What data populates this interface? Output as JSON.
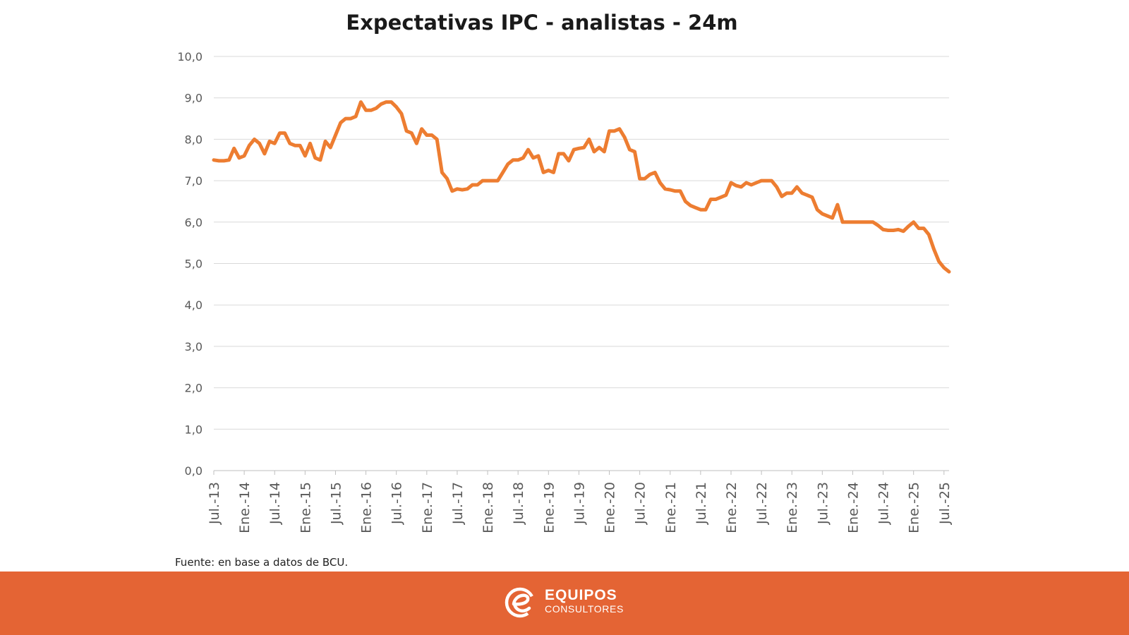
{
  "chart_data": {
    "type": "line",
    "title": "Expectativas IPC - analistas - 24m",
    "xlabel": "",
    "ylabel": "",
    "ylim": [
      0,
      10
    ],
    "y_ticks": [
      "0,0",
      "1,0",
      "2,0",
      "3,0",
      "4,0",
      "5,0",
      "6,0",
      "7,0",
      "8,0",
      "9,0",
      "10,0"
    ],
    "x_tick_labels": [
      "Jul.-13",
      "Ene.-14",
      "Jul.-14",
      "Ene.-15",
      "Jul.-15",
      "Ene.-16",
      "Jul.-16",
      "Ene.-17",
      "Jul.-17",
      "Ene.-18",
      "Jul.-18",
      "Ene.-19",
      "Jul.-19",
      "Ene.-20",
      "Jul.-20",
      "Ene.-21",
      "Jul.-21",
      "Ene.-22",
      "Jul.-22",
      "Ene.-23",
      "Jul.-23",
      "Ene.-24",
      "Jul.-24",
      "Ene.-25",
      "Jul.-25"
    ],
    "x_range_months": [
      0,
      145
    ],
    "grid": true,
    "legend": "none",
    "color": "#ed7d31",
    "series": [
      {
        "name": "Expectativas IPC - analistas - 24m",
        "points": [
          [
            0,
            7.5
          ],
          [
            1,
            7.48
          ],
          [
            2,
            7.48
          ],
          [
            3,
            7.5
          ],
          [
            4,
            7.78
          ],
          [
            5,
            7.55
          ],
          [
            6,
            7.6
          ],
          [
            7,
            7.85
          ],
          [
            8,
            8.0
          ],
          [
            9,
            7.9
          ],
          [
            10,
            7.65
          ],
          [
            11,
            7.95
          ],
          [
            12,
            7.9
          ],
          [
            13,
            8.15
          ],
          [
            14,
            8.15
          ],
          [
            15,
            7.9
          ],
          [
            16,
            7.85
          ],
          [
            17,
            7.85
          ],
          [
            18,
            7.6
          ],
          [
            19,
            7.9
          ],
          [
            20,
            7.55
          ],
          [
            21,
            7.5
          ],
          [
            22,
            7.95
          ],
          [
            23,
            7.8
          ],
          [
            24,
            8.1
          ],
          [
            25,
            8.4
          ],
          [
            26,
            8.5
          ],
          [
            27,
            8.5
          ],
          [
            28,
            8.55
          ],
          [
            29,
            8.9
          ],
          [
            30,
            8.7
          ],
          [
            31,
            8.7
          ],
          [
            32,
            8.75
          ],
          [
            33,
            8.85
          ],
          [
            34,
            8.9
          ],
          [
            35,
            8.9
          ],
          [
            36,
            8.78
          ],
          [
            37,
            8.62
          ],
          [
            38,
            8.2
          ],
          [
            39,
            8.15
          ],
          [
            40,
            7.9
          ],
          [
            41,
            8.25
          ],
          [
            42,
            8.1
          ],
          [
            43,
            8.1
          ],
          [
            44,
            8.0
          ],
          [
            45,
            7.2
          ],
          [
            46,
            7.05
          ],
          [
            47,
            6.75
          ],
          [
            48,
            6.8
          ],
          [
            49,
            6.78
          ],
          [
            50,
            6.8
          ],
          [
            51,
            6.9
          ],
          [
            52,
            6.9
          ],
          [
            53,
            7.0
          ],
          [
            54,
            7.0
          ],
          [
            55,
            7.0
          ],
          [
            56,
            7.0
          ],
          [
            57,
            7.2
          ],
          [
            58,
            7.4
          ],
          [
            59,
            7.5
          ],
          [
            60,
            7.5
          ],
          [
            61,
            7.55
          ],
          [
            62,
            7.75
          ],
          [
            63,
            7.55
          ],
          [
            64,
            7.6
          ],
          [
            65,
            7.2
          ],
          [
            66,
            7.25
          ],
          [
            67,
            7.2
          ],
          [
            68,
            7.65
          ],
          [
            69,
            7.65
          ],
          [
            70,
            7.48
          ],
          [
            71,
            7.75
          ],
          [
            72,
            7.78
          ],
          [
            73,
            7.8
          ],
          [
            74,
            8.0
          ],
          [
            75,
            7.7
          ],
          [
            76,
            7.8
          ],
          [
            77,
            7.7
          ],
          [
            78,
            8.2
          ],
          [
            79,
            8.2
          ],
          [
            80,
            8.25
          ],
          [
            81,
            8.05
          ],
          [
            82,
            7.75
          ],
          [
            83,
            7.7
          ],
          [
            84,
            7.05
          ],
          [
            85,
            7.05
          ],
          [
            86,
            7.15
          ],
          [
            87,
            7.2
          ],
          [
            88,
            6.95
          ],
          [
            89,
            6.8
          ],
          [
            90,
            6.78
          ],
          [
            91,
            6.75
          ],
          [
            92,
            6.75
          ],
          [
            93,
            6.5
          ],
          [
            94,
            6.4
          ],
          [
            95,
            6.35
          ],
          [
            96,
            6.3
          ],
          [
            97,
            6.3
          ],
          [
            98,
            6.55
          ],
          [
            99,
            6.55
          ],
          [
            100,
            6.6
          ],
          [
            101,
            6.65
          ],
          [
            102,
            6.95
          ],
          [
            103,
            6.88
          ],
          [
            104,
            6.85
          ],
          [
            105,
            6.95
          ],
          [
            106,
            6.9
          ],
          [
            107,
            6.95
          ],
          [
            108,
            7.0
          ],
          [
            109,
            7.0
          ],
          [
            110,
            7.0
          ],
          [
            111,
            6.85
          ],
          [
            112,
            6.62
          ],
          [
            113,
            6.7
          ],
          [
            114,
            6.7
          ],
          [
            115,
            6.85
          ],
          [
            116,
            6.7
          ],
          [
            117,
            6.65
          ],
          [
            118,
            6.6
          ],
          [
            119,
            6.3
          ],
          [
            120,
            6.2
          ],
          [
            121,
            6.15
          ],
          [
            122,
            6.1
          ],
          [
            123,
            6.42
          ],
          [
            124,
            6.0
          ],
          [
            125,
            6.0
          ],
          [
            126,
            6.0
          ],
          [
            127,
            6.0
          ],
          [
            128,
            6.0
          ],
          [
            129,
            6.0
          ],
          [
            130,
            6.0
          ],
          [
            131,
            5.92
          ],
          [
            132,
            5.82
          ],
          [
            133,
            5.8
          ],
          [
            134,
            5.8
          ],
          [
            135,
            5.82
          ],
          [
            136,
            5.78
          ],
          [
            137,
            5.9
          ],
          [
            138,
            6.0
          ],
          [
            139,
            5.85
          ],
          [
            140,
            5.85
          ],
          [
            141,
            5.7
          ],
          [
            142,
            5.35
          ],
          [
            143,
            5.05
          ],
          [
            144,
            4.9
          ],
          [
            145,
            4.8
          ]
        ]
      }
    ]
  },
  "source_note": "Fuente: en base a datos de BCU.",
  "brand": {
    "name": "EQUIPOS",
    "subtitle": "CONSULTORES"
  },
  "colors": {
    "line": "#ed7d31",
    "footer": "#e46434",
    "grid": "#d9d9d9"
  }
}
